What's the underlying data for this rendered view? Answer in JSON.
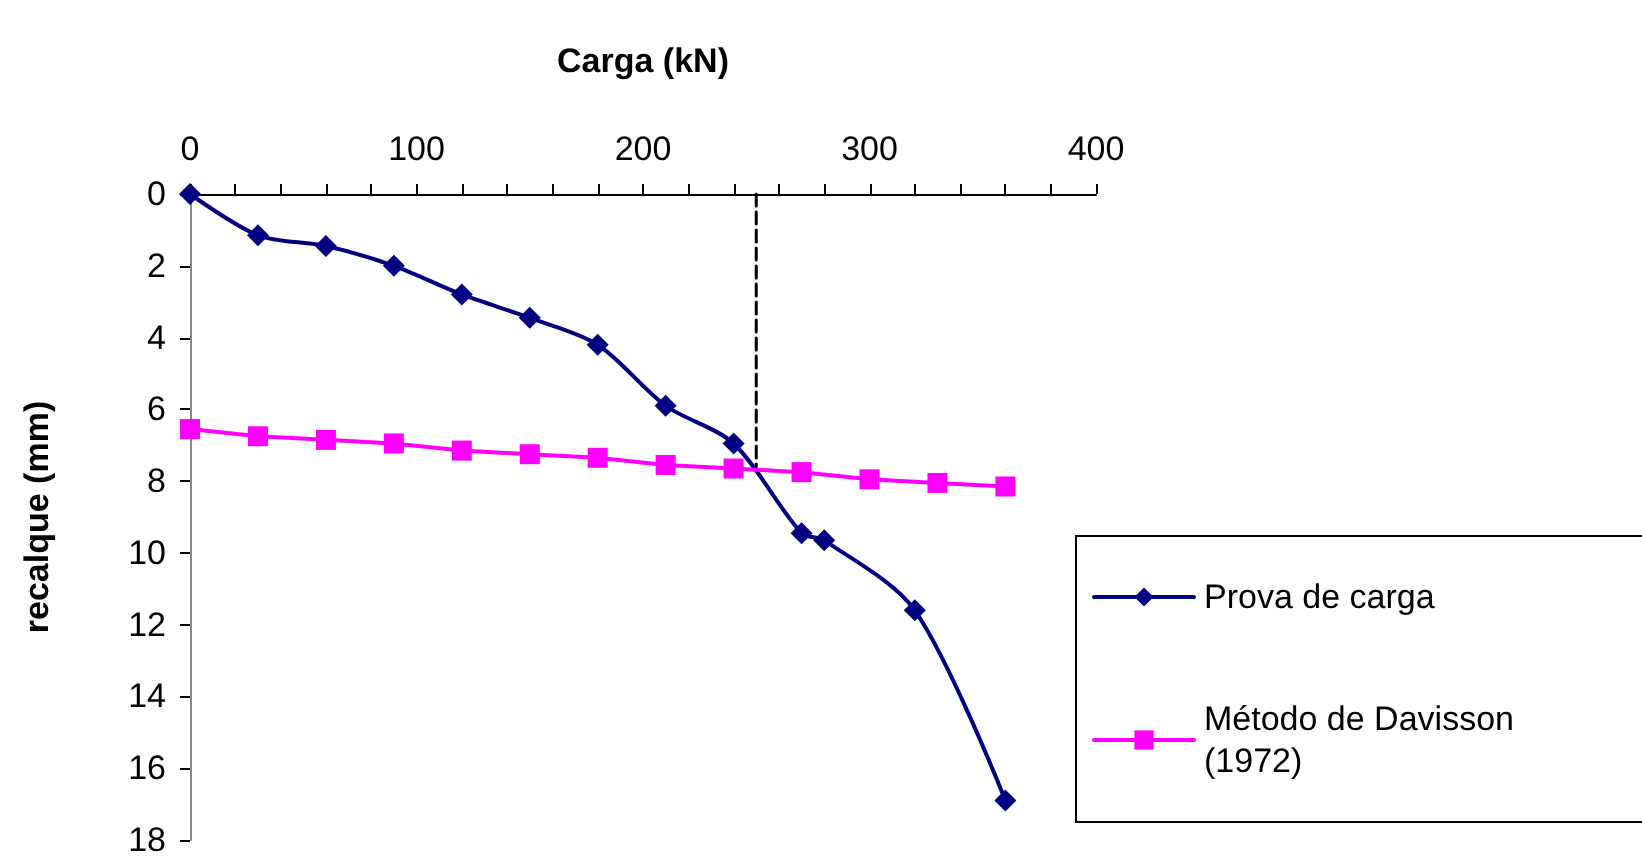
{
  "chart_data": {
    "type": "line",
    "xlabel": "Carga (kN)",
    "ylabel": "recalque (mm)",
    "xlim": [
      0,
      400
    ],
    "xticks": [
      0,
      100,
      200,
      300,
      400
    ],
    "ylim": [
      18,
      0
    ],
    "yticks": [
      0,
      2,
      4,
      6,
      8,
      10,
      12,
      14,
      16,
      18
    ],
    "grid": false,
    "legend": "right",
    "series": [
      {
        "name": "Prova de carga",
        "color": "#000080",
        "marker": "diamond",
        "x": [
          0,
          30,
          60,
          90,
          120,
          150,
          180,
          210,
          240,
          270,
          280,
          320,
          360
        ],
        "values": [
          0,
          1.15,
          1.45,
          2.0,
          2.8,
          3.45,
          4.2,
          5.9,
          6.95,
          9.45,
          9.65,
          11.6,
          16.9
        ]
      },
      {
        "name": "Método de Davisson (1972)",
        "color": "#ff00ff",
        "marker": "square",
        "x": [
          0,
          30,
          60,
          90,
          120,
          150,
          180,
          210,
          240,
          270,
          300,
          330,
          360
        ],
        "values": [
          6.55,
          6.75,
          6.85,
          6.95,
          7.15,
          7.25,
          7.35,
          7.55,
          7.65,
          7.75,
          7.95,
          8.05,
          8.15
        ]
      },
      {
        "type": "line",
        "color": "#000000",
        "marker": "none",
        "line_style": "dashed",
        "x": [
          250,
          250
        ],
        "values": [
          0,
          7.6
        ]
      }
    ]
  }
}
